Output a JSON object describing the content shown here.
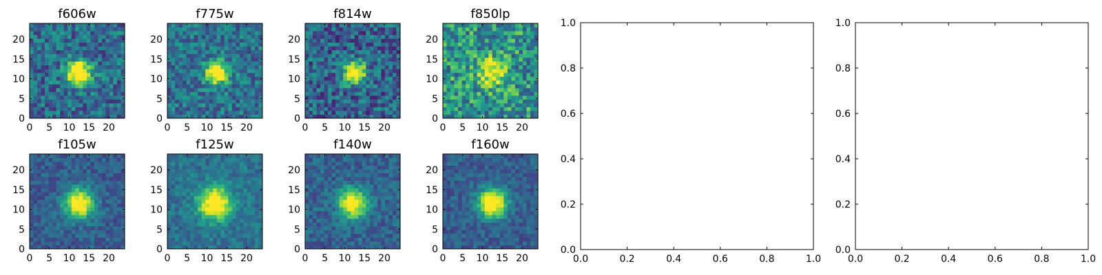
{
  "chart_data": [
    {
      "type": "heatmap",
      "title": "f606w",
      "colormap": "viridis",
      "xlim": [
        0,
        24
      ],
      "ylim": [
        0,
        24
      ],
      "xticks": [
        "0",
        "5",
        "10",
        "15",
        "20"
      ],
      "yticks": [
        "0",
        "5",
        "10",
        "15",
        "20"
      ],
      "source": {
        "center": [
          12.5,
          11.5
        ],
        "sigma": 2.2,
        "amplitude": 0.95
      },
      "background": 0.35,
      "noise": 0.22,
      "seed": 11
    },
    {
      "type": "heatmap",
      "title": "f775w",
      "colormap": "viridis",
      "xlim": [
        0,
        24
      ],
      "ylim": [
        0,
        24
      ],
      "xticks": [
        "0",
        "5",
        "10",
        "15",
        "20"
      ],
      "yticks": [
        "0",
        "5",
        "10",
        "15",
        "20"
      ],
      "source": {
        "center": [
          12.5,
          11.5
        ],
        "sigma": 2.0,
        "amplitude": 0.9
      },
      "background": 0.38,
      "noise": 0.2,
      "seed": 23
    },
    {
      "type": "heatmap",
      "title": "f814w",
      "colormap": "viridis",
      "xlim": [
        0,
        24
      ],
      "ylim": [
        0,
        24
      ],
      "xticks": [
        "0",
        "5",
        "10",
        "15",
        "20"
      ],
      "yticks": [
        "0",
        "5",
        "10",
        "15",
        "20"
      ],
      "source": {
        "center": [
          12.5,
          11.5
        ],
        "sigma": 2.0,
        "amplitude": 0.9
      },
      "background": 0.32,
      "noise": 0.24,
      "seed": 37
    },
    {
      "type": "heatmap",
      "title": "f850lp",
      "colormap": "viridis",
      "xlim": [
        0,
        24
      ],
      "ylim": [
        0,
        24
      ],
      "xticks": [
        "0",
        "5",
        "10",
        "15",
        "20"
      ],
      "yticks": [
        "0",
        "5",
        "10",
        "15",
        "20"
      ],
      "source": {
        "center": [
          12.5,
          11.5
        ],
        "sigma": 2.6,
        "amplitude": 0.55
      },
      "background": 0.52,
      "noise": 0.28,
      "seed": 53
    },
    {
      "type": "heatmap",
      "title": "f105w",
      "colormap": "viridis",
      "xlim": [
        0,
        24
      ],
      "ylim": [
        0,
        24
      ],
      "xticks": [
        "0",
        "5",
        "10",
        "15",
        "20"
      ],
      "yticks": [
        "0",
        "5",
        "10",
        "15",
        "20"
      ],
      "source": {
        "center": [
          12.5,
          11.5
        ],
        "sigma": 2.7,
        "amplitude": 0.85
      },
      "background": 0.3,
      "noise": 0.12,
      "seed": 67
    },
    {
      "type": "heatmap",
      "title": "f125w",
      "colormap": "viridis",
      "xlim": [
        0,
        24
      ],
      "ylim": [
        0,
        24
      ],
      "xticks": [
        "0",
        "5",
        "10",
        "15",
        "20"
      ],
      "yticks": [
        "0",
        "5",
        "10",
        "15",
        "20"
      ],
      "source": {
        "center": [
          12.0,
          11.5
        ],
        "sigma": 3.0,
        "amplitude": 0.8
      },
      "background": 0.38,
      "noise": 0.12,
      "seed": 79
    },
    {
      "type": "heatmap",
      "title": "f140w",
      "colormap": "viridis",
      "xlim": [
        0,
        24
      ],
      "ylim": [
        0,
        24
      ],
      "xticks": [
        "0",
        "5",
        "10",
        "15",
        "20"
      ],
      "yticks": [
        "0",
        "5",
        "10",
        "15",
        "20"
      ],
      "source": {
        "center": [
          12.0,
          11.5
        ],
        "sigma": 2.6,
        "amplitude": 0.8
      },
      "background": 0.32,
      "noise": 0.13,
      "seed": 97
    },
    {
      "type": "heatmap",
      "title": "f160w",
      "colormap": "viridis",
      "xlim": [
        0,
        24
      ],
      "ylim": [
        0,
        24
      ],
      "xticks": [
        "0",
        "5",
        "10",
        "15",
        "20"
      ],
      "yticks": [
        "0",
        "5",
        "10",
        "15",
        "20"
      ],
      "source": {
        "center": [
          12.5,
          11.5
        ],
        "sigma": 2.6,
        "amplitude": 0.9
      },
      "background": 0.3,
      "noise": 0.12,
      "seed": 113
    },
    {
      "type": "scatter",
      "title": "",
      "xlim": [
        0,
        1
      ],
      "ylim": [
        0,
        1
      ],
      "points": [],
      "xticks": [
        "0.0",
        "0.2",
        "0.4",
        "0.6",
        "0.8",
        "1.0"
      ],
      "yticks": [
        "0.0",
        "0.2",
        "0.4",
        "0.6",
        "0.8",
        "1.0"
      ]
    },
    {
      "type": "scatter",
      "title": "",
      "xlim": [
        0,
        1
      ],
      "ylim": [
        0,
        1
      ],
      "points": [],
      "xticks": [
        "0.0",
        "0.2",
        "0.4",
        "0.6",
        "0.8",
        "1.0"
      ],
      "yticks": [
        "0.0",
        "0.2",
        "0.4",
        "0.6",
        "0.8",
        "1.0"
      ]
    }
  ]
}
